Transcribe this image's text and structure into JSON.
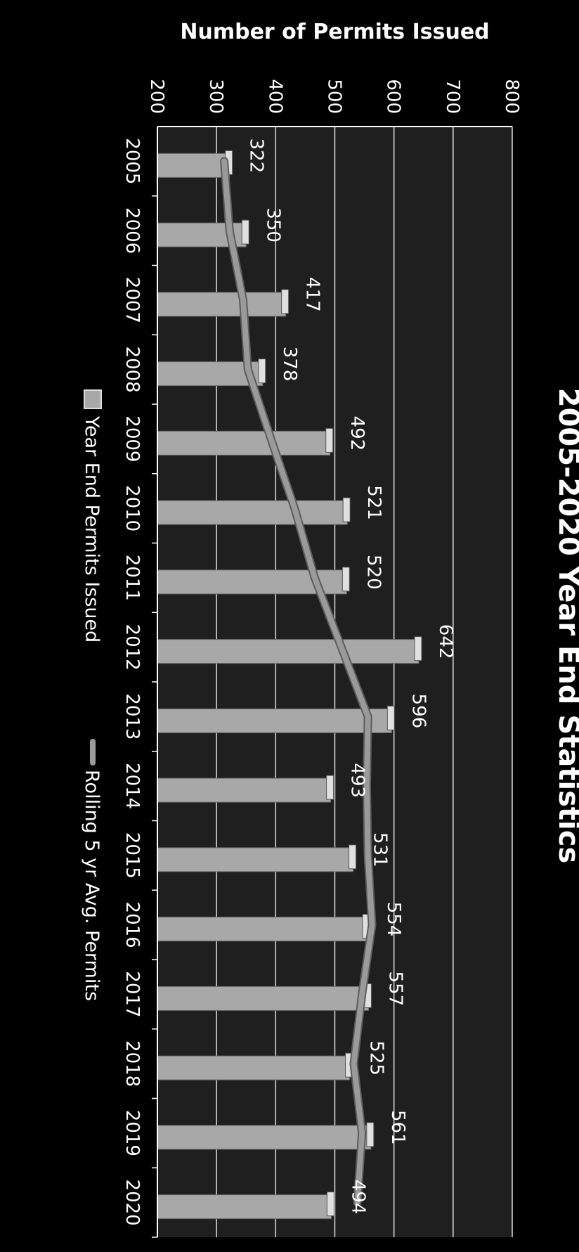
{
  "chart_data": {
    "type": "bar",
    "title": "2005-2020 Year End Statistics",
    "ylabel": "Number of Permits Issued",
    "xlabel": "",
    "ylim": [
      200,
      800
    ],
    "yticks": [
      200,
      300,
      400,
      500,
      600,
      700,
      800
    ],
    "categories": [
      "2005",
      "2006",
      "2007",
      "2008",
      "2009",
      "2010",
      "2011",
      "2012",
      "2013",
      "2014",
      "2015",
      "2016",
      "2017",
      "2018",
      "2019",
      "2020"
    ],
    "series": [
      {
        "name": "Year End Permits Issued",
        "kind": "bar",
        "values": [
          322,
          350,
          417,
          378,
          492,
          521,
          520,
          642,
          596,
          493,
          531,
          554,
          557,
          525,
          561,
          494
        ]
      },
      {
        "name": "Rolling 5 yr Avg. Permits",
        "kind": "line",
        "values": [
          313,
          322,
          345,
          353,
          392,
          432,
          466,
          511,
          556,
          554,
          556,
          563,
          546,
          532,
          546,
          538
        ]
      }
    ],
    "grid": true,
    "orientation": "rotated 90° clockwise",
    "legend_position": "bottom",
    "colors": {
      "background": "#000000",
      "plot": "#1f1f1f",
      "bar": "#a8a8a8",
      "bar_top": "#e0e0e0",
      "line": "#9a9a9a",
      "grid": "#ffffff",
      "text": "#ffffff"
    }
  }
}
